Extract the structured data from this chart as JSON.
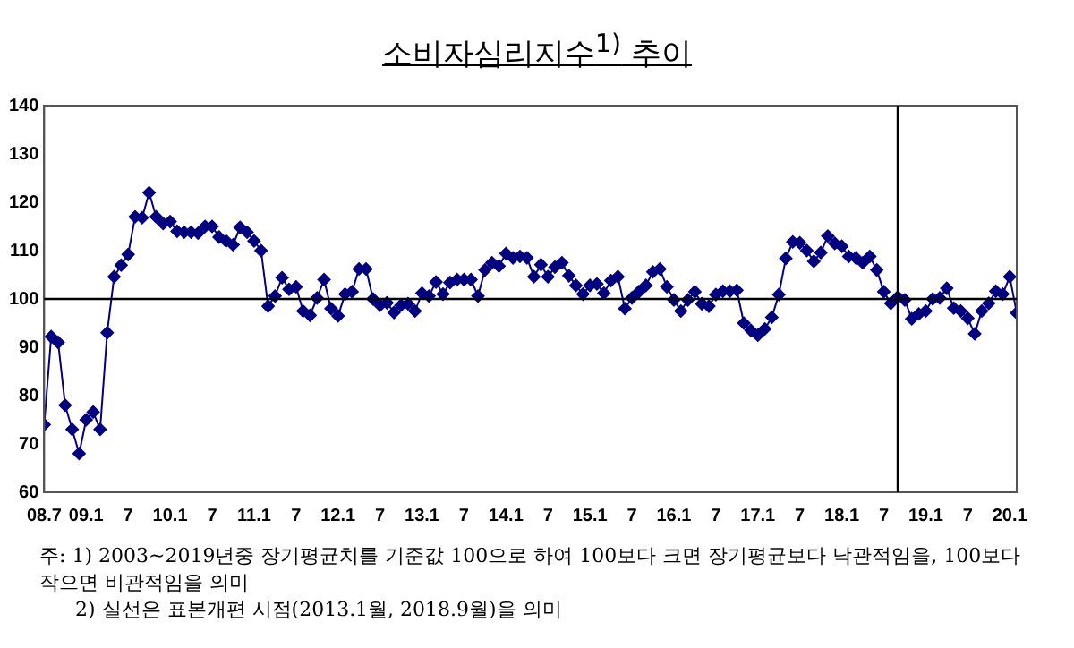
{
  "chart_data": {
    "type": "line",
    "title": "소비자심리지수$^{1)}$ 추이",
    "x": [
      "2008-07",
      "2008-08",
      "2008-09",
      "2008-10",
      "2008-11",
      "2008-12",
      "2009-01",
      "2009-02",
      "2009-03",
      "2009-04",
      "2009-05",
      "2009-06",
      "2009-07",
      "2009-08",
      "2009-09",
      "2009-10",
      "2009-11",
      "2009-12",
      "2010-01",
      "2010-02",
      "2010-03",
      "2010-04",
      "2010-05",
      "2010-06",
      "2010-07",
      "2010-08",
      "2010-09",
      "2010-10",
      "2010-11",
      "2010-12",
      "2011-01",
      "2011-02",
      "2011-03",
      "2011-04",
      "2011-05",
      "2011-06",
      "2011-07",
      "2011-08",
      "2011-09",
      "2011-10",
      "2011-11",
      "2011-12",
      "2012-01",
      "2012-02",
      "2012-03",
      "2012-04",
      "2012-05",
      "2012-06",
      "2012-07",
      "2012-08",
      "2012-09",
      "2012-10",
      "2012-11",
      "2012-12",
      "2013-01",
      "2013-02",
      "2013-03",
      "2013-04",
      "2013-05",
      "2013-06",
      "2013-07",
      "2013-08",
      "2013-09",
      "2013-10",
      "2013-11",
      "2013-12",
      "2014-01",
      "2014-02",
      "2014-03",
      "2014-04",
      "2014-05",
      "2014-06",
      "2014-07",
      "2014-08",
      "2014-09",
      "2014-10",
      "2014-11",
      "2014-12",
      "2015-01",
      "2015-02",
      "2015-03",
      "2015-04",
      "2015-05",
      "2015-06",
      "2015-07",
      "2015-08",
      "2015-09",
      "2015-10",
      "2015-11",
      "2015-12",
      "2016-01",
      "2016-02",
      "2016-03",
      "2016-04",
      "2016-05",
      "2016-06",
      "2016-07",
      "2016-08",
      "2016-09",
      "2016-10",
      "2016-11",
      "2016-12",
      "2017-01",
      "2017-02",
      "2017-03",
      "2017-04",
      "2017-05",
      "2017-06",
      "2017-07",
      "2017-08",
      "2017-09",
      "2017-10",
      "2017-11",
      "2017-12",
      "2018-01",
      "2018-02",
      "2018-03",
      "2018-04",
      "2018-05",
      "2018-06",
      "2018-07",
      "2018-08",
      "2018-09",
      "2018-10",
      "2018-11",
      "2018-12",
      "2019-01",
      "2019-02",
      "2019-03",
      "2019-04",
      "2019-05",
      "2019-06",
      "2019-07",
      "2019-08",
      "2019-09",
      "2019-10",
      "2019-11",
      "2019-12",
      "2020-01",
      "2020-02"
    ],
    "series": [
      {
        "color": "#000080",
        "values": [
          74,
          92.2,
          91,
          78,
          73,
          68,
          75,
          76.6,
          73,
          93,
          104.6,
          107,
          109.2,
          117,
          116.8,
          122,
          117,
          115.6,
          116,
          114,
          113.8,
          113.8,
          113.6,
          115,
          115,
          112.8,
          112,
          111.2,
          114.8,
          113.8,
          112,
          110,
          98.5,
          100.6,
          104.4,
          102,
          102.5,
          97.5,
          96.6,
          100.2,
          104,
          98,
          96.5,
          101,
          101.5,
          106.2,
          106.2,
          100,
          98.7,
          99.2,
          97.2,
          98.7,
          99,
          97.5,
          101.2,
          100.6,
          103.5,
          101,
          103.4,
          104,
          104,
          104,
          100.6,
          106,
          107.5,
          106.8,
          109.4,
          108.5,
          108.8,
          108.5,
          104.6,
          107.1,
          104.6,
          106.6,
          107.5,
          104.8,
          102.8,
          101,
          102.8,
          103.1,
          101.2,
          103.8,
          104.6,
          98,
          100.2,
          101.5,
          102.8,
          105.6,
          106.2,
          102.5,
          99.8,
          97.5,
          99.8,
          101.5,
          99,
          98.5,
          100.9,
          101.6,
          101.6,
          101.8,
          95,
          93.5,
          92.5,
          93.8,
          96.2,
          100.9,
          108.4,
          111.8,
          111.6,
          110,
          107.8,
          109.6,
          113,
          111.5,
          110.9,
          108.8,
          108.5,
          107.5,
          108.8,
          106,
          101.5,
          99.1,
          100.4,
          99.8,
          95.9,
          96.9,
          97.5,
          100,
          100.2,
          102.2,
          98.1,
          97.5,
          96,
          92.8,
          97.5,
          99.1,
          101.6,
          101,
          104.6,
          97.1
        ]
      }
    ],
    "xlim": [
      "2008-07",
      "2020-02"
    ],
    "xticks": [
      {
        "value": "2008-07",
        "label": "08.7"
      },
      {
        "value": "2009-01",
        "label": "09.1"
      },
      {
        "value": "2009-07",
        "label": "7"
      },
      {
        "value": "2010-01",
        "label": "10.1"
      },
      {
        "value": "2010-07",
        "label": "7"
      },
      {
        "value": "2011-01",
        "label": "11.1"
      },
      {
        "value": "2011-07",
        "label": "7"
      },
      {
        "value": "2012-01",
        "label": "12.1"
      },
      {
        "value": "2012-07",
        "label": "7"
      },
      {
        "value": "2013-01",
        "label": "13.1"
      },
      {
        "value": "2013-07",
        "label": "7"
      },
      {
        "value": "2014-01",
        "label": "14.1"
      },
      {
        "value": "2014-07",
        "label": "7"
      },
      {
        "value": "2015-01",
        "label": "15.1"
      },
      {
        "value": "2015-07",
        "label": "7"
      },
      {
        "value": "2016-01",
        "label": "16.1"
      },
      {
        "value": "2016-07",
        "label": "7"
      },
      {
        "value": "2017-01",
        "label": "17.1"
      },
      {
        "value": "2017-07",
        "label": "7"
      },
      {
        "value": "2018-01",
        "label": "18.1"
      },
      {
        "value": "2018-07",
        "label": "7"
      },
      {
        "value": "2019-01",
        "label": "19.1"
      },
      {
        "value": "2019-07",
        "label": "7"
      },
      {
        "value": "2020-01",
        "label": "20.1"
      }
    ],
    "ylim": [
      60,
      140
    ],
    "yticks": [
      60,
      70,
      80,
      90,
      100,
      110,
      120,
      130,
      140
    ],
    "marker": "diamond",
    "line_style": "solid",
    "ref_lines": [
      {
        "axis": "y",
        "value": 100,
        "color": "#000000"
      },
      {
        "axis": "x",
        "value": "2018-09",
        "color": "#000000"
      }
    ],
    "annotations": [
      "주: 1) 2003~2019년중 장기평균치를 기준값 100으로 하여 100보다 크면 장기평균보다 낙관적임을, 100보다 작으면 비관적임을 의미",
      "2) 실선은 표본개편 시점(2013.1월, 2018.9월)을 의미"
    ]
  }
}
